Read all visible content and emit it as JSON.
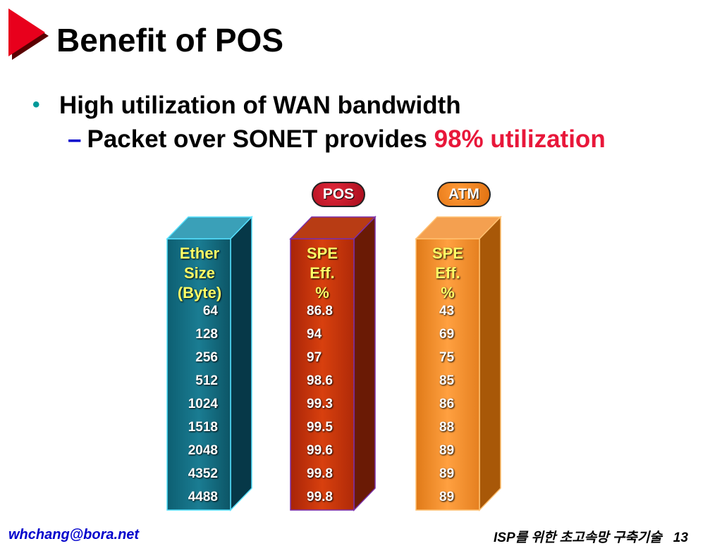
{
  "slide": {
    "title": "Benefit of POS",
    "bullet": "High utilization of WAN bandwidth",
    "sub_bullet_prefix": "Packet over SONET provides ",
    "sub_bullet_highlight": "98% utilization",
    "accent_color": "#e8173a",
    "title_mark_color": "#e8001c"
  },
  "badges": {
    "pos": "POS",
    "atm": "ATM"
  },
  "columns": {
    "ether": {
      "header": [
        "Ether",
        "Size",
        "(Byte)"
      ],
      "values": [
        "64",
        "128",
        "256",
        "512",
        "1024",
        "1518",
        "2048",
        "4352",
        "4488"
      ],
      "color": "#0e6a7c"
    },
    "pos": {
      "header": [
        "SPE",
        "Eff.",
        "%"
      ],
      "values": [
        "86.8",
        "94",
        "97",
        "98.6",
        "99.3",
        "99.5",
        "99.6",
        "99.8",
        "99.8"
      ],
      "color": "#c4300a"
    },
    "atm": {
      "header": [
        "SPE",
        "Eff.",
        "%"
      ],
      "values": [
        "43",
        "69",
        "75",
        "85",
        "86",
        "88",
        "89",
        "89",
        "89"
      ],
      "color": "#f08a22"
    }
  },
  "footer": {
    "email": "whchang@bora.net",
    "subtitle": "ISP를 위한 초고속망 구축기술",
    "page": "13"
  }
}
